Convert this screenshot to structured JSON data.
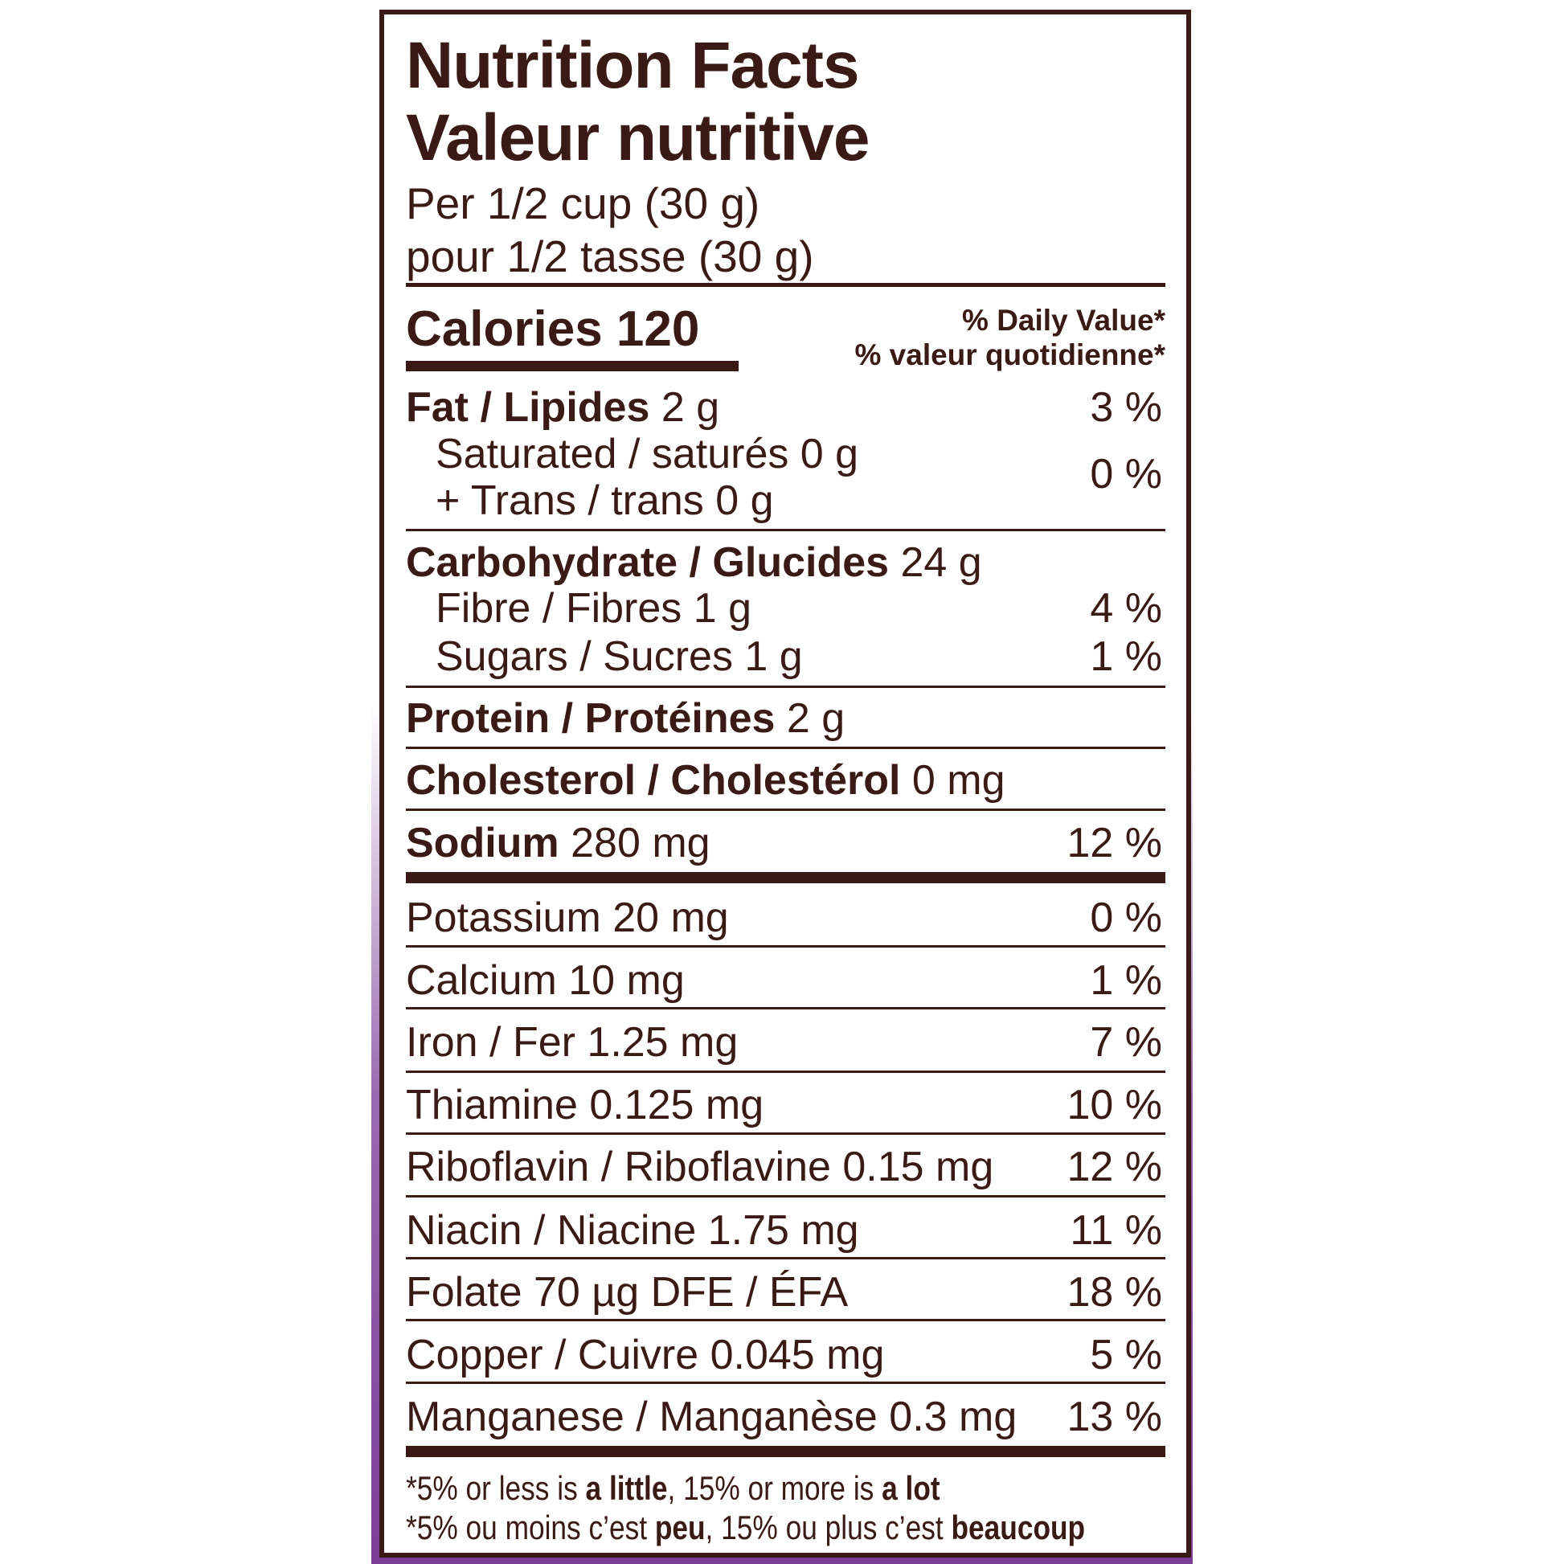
{
  "colors": {
    "text": "#3a1a14",
    "accent_purple": "#7a3e96",
    "background": "#ffffff"
  },
  "header": {
    "title_en": "Nutrition Facts",
    "title_fr": "Valeur nutritive",
    "serving_en": "Per 1/2 cup (30 g)",
    "serving_fr": "pour 1/2 tasse (30 g)"
  },
  "calories": {
    "label": "Calories 120"
  },
  "daily_value": {
    "en": "% Daily Value*",
    "fr": "% valeur quotidienne*"
  },
  "nutrients": {
    "fat": {
      "label": "Fat / Lipides",
      "amount": " 2 g",
      "dv": "3 %"
    },
    "saturated": {
      "label": "Saturated / saturés 0 g"
    },
    "trans": {
      "label": "+ Trans / trans 0 g"
    },
    "sat_trans_dv": "0 %",
    "carb": {
      "label": "Carbohydrate / Glucides",
      "amount": " 24 g"
    },
    "fibre": {
      "label": "Fibre / Fibres 1 g",
      "dv": "4 %"
    },
    "sugars": {
      "label": "Sugars / Sucres 1 g",
      "dv": "1 %"
    },
    "protein": {
      "label": "Protein / Protéines",
      "amount": " 2 g"
    },
    "cholesterol": {
      "label": "Cholesterol / Cholestérol",
      "amount": " 0 mg"
    },
    "sodium": {
      "label": "Sodium",
      "amount": " 280 mg",
      "dv": "12 %"
    }
  },
  "micros": [
    {
      "label": "Potassium 20 mg",
      "dv": "0 %"
    },
    {
      "label": "Calcium 10 mg",
      "dv": "1 %"
    },
    {
      "label": "Iron / Fer 1.25 mg",
      "dv": "7 %"
    },
    {
      "label": "Thiamine 0.125 mg",
      "dv": "10 %"
    },
    {
      "label": "Riboflavin / Riboflavine 0.15 mg",
      "dv": "12 %"
    },
    {
      "label": "Niacin / Niacine 1.75 mg",
      "dv": "11 %"
    },
    {
      "label": "Folate 70 µg DFE / ÉFA",
      "dv": "18 %"
    },
    {
      "label": "Copper / Cuivre 0.045 mg",
      "dv": "5 %"
    },
    {
      "label": "Manganese / Manganèse 0.3 mg",
      "dv": "13 %"
    }
  ],
  "footnote": {
    "en": {
      "a": "*5% or less is ",
      "b": "a little",
      "c": ", 15% or more is ",
      "d": "a lot"
    },
    "fr": {
      "a": "*5% ou moins c’est ",
      "b": "peu",
      "c": ", 15% ou plus c’est ",
      "d": "beaucoup"
    }
  }
}
